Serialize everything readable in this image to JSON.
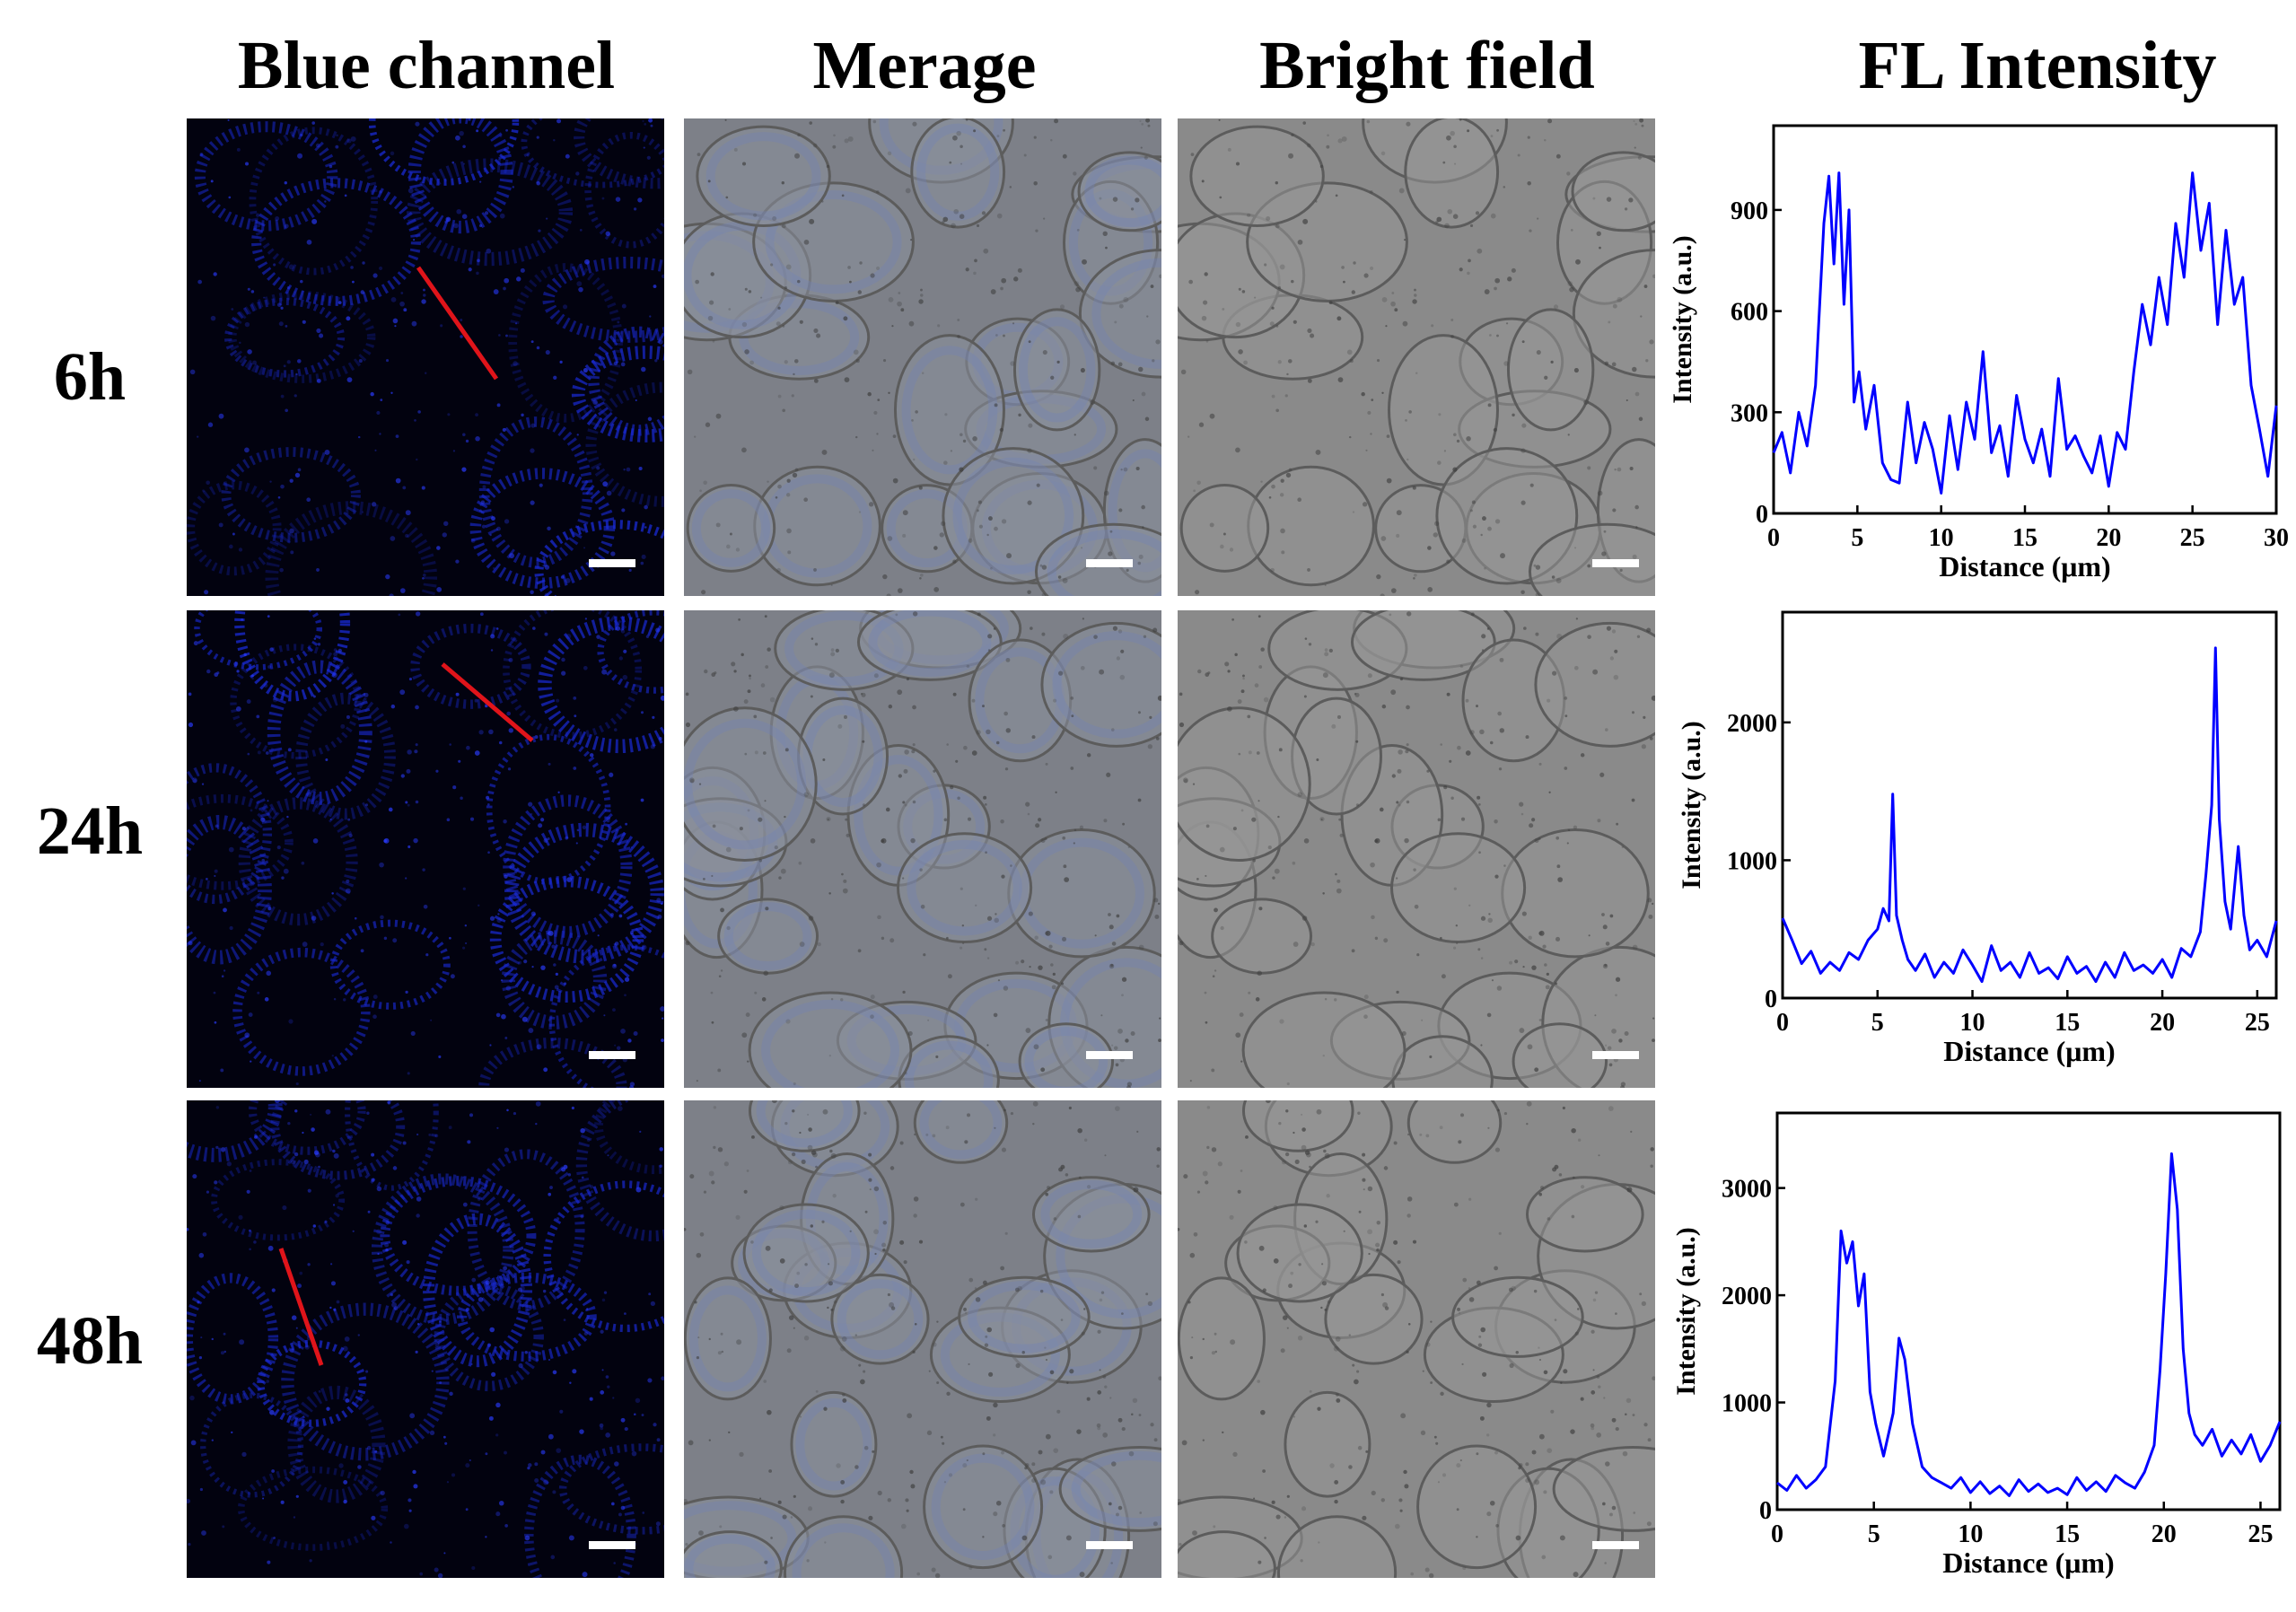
{
  "column_titles": {
    "blue": "Blue channel",
    "merge": "Merage",
    "bright": "Bright field",
    "fl": "FL Intensity"
  },
  "rows": [
    {
      "label": "6h"
    },
    {
      "label": "24h"
    },
    {
      "label": "48h"
    }
  ],
  "colors": {
    "fluorescence_blue": "#1a2bd6",
    "line_profile_red": "#e0141a",
    "scale_bar": "#ffffff",
    "chart_line": "#0000ff"
  },
  "chart_data": [
    {
      "type": "line",
      "xlabel": "Distance (μm)",
      "ylabel": "Intensity (a.u.)",
      "xlim": [
        0,
        30
      ],
      "ylim": [
        0,
        1150
      ],
      "xticks": [
        0,
        5,
        10,
        15,
        20,
        25,
        30
      ],
      "yticks": [
        0,
        300,
        600,
        900
      ],
      "series": [
        {
          "x": [
            0,
            0.5,
            1,
            1.5,
            2,
            2.5,
            3,
            3.3,
            3.6,
            3.9,
            4.2,
            4.5,
            4.8,
            5.1,
            5.5,
            6,
            6.5,
            7,
            7.5,
            8,
            8.5,
            9,
            9.5,
            10,
            10.5,
            11,
            11.5,
            12,
            12.5,
            13,
            13.5,
            14,
            14.5,
            15,
            15.5,
            16,
            16.5,
            17,
            17.5,
            18,
            18.5,
            19,
            19.5,
            20,
            20.5,
            21,
            21.5,
            22,
            22.5,
            23,
            23.5,
            24,
            24.5,
            25,
            25.5,
            26,
            26.5,
            27,
            27.5,
            28,
            28.5,
            29,
            29.5,
            30
          ],
          "y": [
            180,
            240,
            120,
            300,
            200,
            380,
            860,
            1000,
            740,
            1010,
            620,
            900,
            330,
            420,
            250,
            380,
            150,
            100,
            90,
            330,
            150,
            270,
            190,
            60,
            290,
            130,
            330,
            220,
            480,
            180,
            260,
            110,
            350,
            220,
            150,
            250,
            110,
            400,
            190,
            230,
            170,
            120,
            230,
            80,
            240,
            190,
            420,
            620,
            500,
            700,
            560,
            860,
            700,
            1010,
            780,
            920,
            560,
            840,
            620,
            700,
            380,
            250,
            110,
            320
          ]
        }
      ]
    },
    {
      "type": "line",
      "xlabel": "Distance (μm)",
      "ylabel": "Intensity (a.u.)",
      "xlim": [
        0,
        26
      ],
      "ylim": [
        0,
        2800
      ],
      "xticks": [
        0,
        5,
        10,
        15,
        20,
        25
      ],
      "yticks": [
        0,
        1000,
        2000
      ],
      "series": [
        {
          "x": [
            0,
            0.5,
            1,
            1.5,
            2,
            2.5,
            3,
            3.5,
            4,
            4.5,
            5,
            5.3,
            5.6,
            5.8,
            6,
            6.3,
            6.6,
            7,
            7.5,
            8,
            8.5,
            9,
            9.5,
            10,
            10.5,
            11,
            11.5,
            12,
            12.5,
            13,
            13.5,
            14,
            14.5,
            15,
            15.5,
            16,
            16.5,
            17,
            17.5,
            18,
            18.5,
            19,
            19.5,
            20,
            20.5,
            21,
            21.5,
            22,
            22.3,
            22.6,
            22.8,
            23,
            23.3,
            23.6,
            24,
            24.3,
            24.6,
            25,
            25.5,
            26
          ],
          "y": [
            580,
            420,
            250,
            340,
            180,
            260,
            200,
            330,
            280,
            420,
            500,
            650,
            560,
            1480,
            600,
            420,
            280,
            200,
            320,
            150,
            260,
            180,
            350,
            240,
            120,
            380,
            200,
            260,
            150,
            330,
            180,
            220,
            140,
            300,
            180,
            230,
            120,
            260,
            150,
            330,
            200,
            240,
            180,
            280,
            150,
            360,
            300,
            480,
            900,
            1400,
            2540,
            1300,
            700,
            500,
            1100,
            600,
            350,
            420,
            300,
            560
          ]
        }
      ]
    },
    {
      "type": "line",
      "xlabel": "Distance (μm)",
      "ylabel": "Intensity (a.u.)",
      "xlim": [
        0,
        26
      ],
      "ylim": [
        0,
        3700
      ],
      "xticks": [
        0,
        5,
        10,
        15,
        20,
        25
      ],
      "yticks": [
        0,
        1000,
        2000,
        3000
      ],
      "series": [
        {
          "x": [
            0,
            0.5,
            1,
            1.5,
            2,
            2.5,
            3,
            3.3,
            3.6,
            3.9,
            4.2,
            4.5,
            4.8,
            5.1,
            5.5,
            6,
            6.3,
            6.6,
            7,
            7.5,
            8,
            8.5,
            9,
            9.5,
            10,
            10.5,
            11,
            11.5,
            12,
            12.5,
            13,
            13.5,
            14,
            14.5,
            15,
            15.5,
            16,
            16.5,
            17,
            17.5,
            18,
            18.5,
            19,
            19.5,
            19.8,
            20.1,
            20.4,
            20.7,
            21,
            21.3,
            21.6,
            22,
            22.5,
            23,
            23.5,
            24,
            24.5,
            25,
            25.5,
            26
          ],
          "y": [
            250,
            180,
            320,
            200,
            280,
            400,
            1200,
            2600,
            2300,
            2500,
            1900,
            2200,
            1100,
            800,
            500,
            900,
            1600,
            1400,
            800,
            400,
            300,
            250,
            200,
            300,
            160,
            260,
            150,
            220,
            130,
            280,
            170,
            240,
            160,
            200,
            140,
            300,
            180,
            260,
            170,
            320,
            250,
            200,
            350,
            600,
            1300,
            2200,
            3320,
            2800,
            1500,
            900,
            700,
            600,
            750,
            500,
            650,
            520,
            700,
            450,
            600,
            820
          ]
        }
      ]
    }
  ]
}
